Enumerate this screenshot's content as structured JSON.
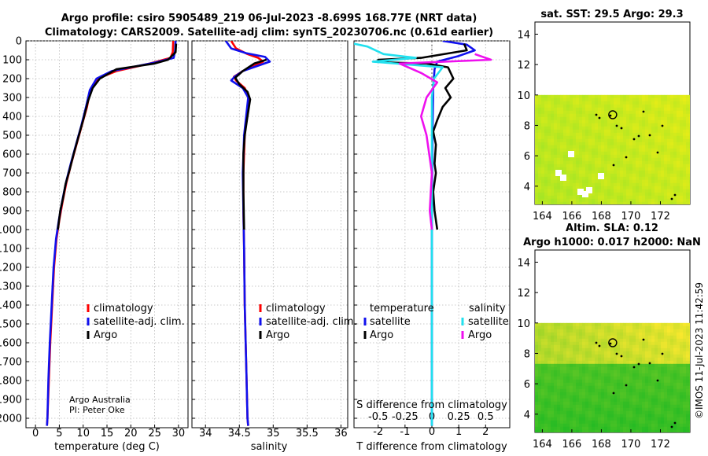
{
  "header": {
    "title_line1": "Argo profile: csiro 5905489_219 06-Jul-2023 -8.699S 168.77E (NRT data)",
    "title_line2": "Climatology: CARS2009. Satellite-adj clim: synTS_20230706.nc (0.61d earlier)"
  },
  "credit": {
    "line1": "Argo Australia",
    "line2": "PI: Peter Oke"
  },
  "stamp": "©IMOS 11-Jul-2023 11:42:59",
  "colors": {
    "climatology": "#ff0000",
    "satellite": "#1010ee",
    "argo": "#000000",
    "sat_salinity": "#22e0ee",
    "argo_salinity": "#ee10ee"
  },
  "chart_data": [
    {
      "type": "line",
      "id": "temperature",
      "xlabel": "temperature (deg C)",
      "ylabel": "",
      "xlim": [
        -2,
        32
      ],
      "ylim": [
        2050,
        0
      ],
      "xticks": [
        0,
        5,
        10,
        15,
        20,
        25,
        30
      ],
      "yticks": [
        0,
        100,
        200,
        300,
        400,
        500,
        600,
        700,
        800,
        900,
        1000,
        1100,
        1200,
        1300,
        1400,
        1500,
        1600,
        1700,
        1800,
        1900,
        2000
      ],
      "legend": [
        "climatology",
        "satellite-adj. clim.",
        "Argo"
      ],
      "series": [
        {
          "name": "climatology",
          "points": [
            [
              28.9,
              0
            ],
            [
              28.8,
              60
            ],
            [
              28.3,
              90
            ],
            [
              24,
              120
            ],
            [
              17,
              160
            ],
            [
              13,
              200
            ],
            [
              11.5,
              260
            ],
            [
              10.8,
              350
            ],
            [
              9.7,
              450
            ],
            [
              8.6,
              550
            ],
            [
              7.5,
              650
            ],
            [
              6.5,
              750
            ],
            [
              5.7,
              850
            ],
            [
              5,
              950
            ],
            [
              4.4,
              1050
            ],
            [
              3.9,
              1200
            ],
            [
              3.5,
              1400
            ],
            [
              3.1,
              1600
            ],
            [
              2.8,
              1800
            ],
            [
              2.5,
              2000
            ],
            [
              2.4,
              2040
            ]
          ]
        },
        {
          "name": "satellite-adj. clim.",
          "points": [
            [
              29.4,
              0
            ],
            [
              29.3,
              50
            ],
            [
              29,
              90
            ],
            [
              25,
              115
            ],
            [
              16,
              160
            ],
            [
              12.8,
              200
            ],
            [
              11.4,
              260
            ],
            [
              10.6,
              350
            ],
            [
              9.6,
              450
            ],
            [
              8.5,
              550
            ],
            [
              7.4,
              650
            ],
            [
              6.4,
              750
            ],
            [
              5.6,
              850
            ],
            [
              4.9,
              950
            ],
            [
              4.3,
              1050
            ],
            [
              3.8,
              1200
            ],
            [
              3.4,
              1400
            ],
            [
              3.0,
              1600
            ],
            [
              2.7,
              1800
            ],
            [
              2.5,
              2000
            ],
            [
              2.4,
              2040
            ]
          ]
        },
        {
          "name": "Argo",
          "points": [
            [
              29.5,
              15
            ],
            [
              29.4,
              60
            ],
            [
              27.8,
              100
            ],
            [
              25,
              120
            ],
            [
              17,
              150
            ],
            [
              13.5,
              200
            ],
            [
              12,
              250
            ],
            [
              11,
              320
            ],
            [
              10,
              420
            ],
            [
              9,
              510
            ],
            [
              8,
              600
            ],
            [
              7.2,
              680
            ],
            [
              6.3,
              760
            ],
            [
              5.8,
              830
            ],
            [
              5.2,
              900
            ],
            [
              4.8,
              980
            ],
            [
              4.7,
              1000
            ]
          ]
        }
      ]
    },
    {
      "type": "line",
      "id": "salinity",
      "xlabel": "salinity",
      "ylabel": "",
      "xlim": [
        33.8,
        36.1
      ],
      "ylim": [
        2050,
        0
      ],
      "xticks": [
        34,
        34.5,
        35,
        35.5,
        36
      ],
      "legend": [
        "climatology",
        "satellite-adj. clim.",
        "Argo"
      ],
      "series": [
        {
          "name": "climatology",
          "points": [
            [
              34.38,
              0
            ],
            [
              34.45,
              40
            ],
            [
              34.62,
              70
            ],
            [
              34.78,
              90
            ],
            [
              34.85,
              110
            ],
            [
              34.55,
              160
            ],
            [
              34.42,
              190
            ],
            [
              34.45,
              210
            ],
            [
              34.58,
              250
            ],
            [
              34.64,
              300
            ],
            [
              34.61,
              400
            ],
            [
              34.58,
              500
            ],
            [
              34.56,
              700
            ],
            [
              34.56,
              900
            ],
            [
              34.57,
              1100
            ],
            [
              34.58,
              1400
            ],
            [
              34.6,
              1700
            ],
            [
              34.62,
              2000
            ],
            [
              34.63,
              2040
            ]
          ]
        },
        {
          "name": "satellite-adj. clim.",
          "points": [
            [
              34.3,
              0
            ],
            [
              34.38,
              40
            ],
            [
              34.6,
              65
            ],
            [
              34.88,
              85
            ],
            [
              34.95,
              110
            ],
            [
              34.55,
              160
            ],
            [
              34.43,
              190
            ],
            [
              34.38,
              210
            ],
            [
              34.55,
              250
            ],
            [
              34.63,
              300
            ],
            [
              34.6,
              400
            ],
            [
              34.57,
              500
            ],
            [
              34.55,
              700
            ],
            [
              34.56,
              900
            ],
            [
              34.57,
              1100
            ],
            [
              34.58,
              1400
            ],
            [
              34.6,
              1700
            ],
            [
              34.62,
              2000
            ],
            [
              34.63,
              2040
            ]
          ]
        },
        {
          "name": "Argo",
          "points": [
            [
              34.9,
              100
            ],
            [
              34.72,
              120
            ],
            [
              34.55,
              160
            ],
            [
              34.44,
              195
            ],
            [
              34.5,
              230
            ],
            [
              34.62,
              270
            ],
            [
              34.66,
              310
            ],
            [
              34.62,
              400
            ],
            [
              34.58,
              500
            ],
            [
              34.56,
              600
            ],
            [
              34.56,
              800
            ],
            [
              34.57,
              1000
            ]
          ]
        }
      ]
    },
    {
      "type": "line",
      "id": "differences",
      "xlabel": "T difference from climatology",
      "xlabel_top": "S difference from climatology",
      "xlim": [
        -2.9,
        2.9
      ],
      "ylim": [
        2050,
        0
      ],
      "xticks": [
        -2,
        -1,
        0,
        1,
        2
      ],
      "xticks_s": [
        -0.5,
        -0.25,
        0,
        0.25,
        0.5
      ],
      "legend_temperature_title": "temperature",
      "legend_salinity_title": "salinity",
      "legend": [
        "satellite",
        "Argo",
        "satellite",
        "Argo"
      ],
      "series": [
        {
          "name": "satellite (temperature)",
          "points": [
            [
              0.4,
              0
            ],
            [
              1.3,
              20
            ],
            [
              1.6,
              50
            ],
            [
              1.0,
              80
            ],
            [
              0.2,
              110
            ],
            [
              0.1,
              150
            ],
            [
              0.05,
              250
            ],
            [
              0.02,
              500
            ],
            [
              0,
              1000
            ],
            [
              0,
              2040
            ]
          ]
        },
        {
          "name": "Argo (temperature)",
          "points": [
            [
              1.2,
              15
            ],
            [
              1.3,
              50
            ],
            [
              -0.4,
              90
            ],
            [
              -2.0,
              100
            ],
            [
              -1.6,
              115
            ],
            [
              -0.2,
              120
            ],
            [
              0.6,
              140
            ],
            [
              0.8,
              200
            ],
            [
              0.5,
              250
            ],
            [
              0.7,
              300
            ],
            [
              0.4,
              350
            ],
            [
              0.2,
              420
            ],
            [
              0.05,
              480
            ],
            [
              0.15,
              550
            ],
            [
              0.1,
              650
            ],
            [
              0.15,
              700
            ],
            [
              0.05,
              800
            ],
            [
              0.1,
              900
            ],
            [
              0.2,
              1000
            ]
          ]
        },
        {
          "name": "satellite (salinity)",
          "points": [
            [
              -0.85,
              0
            ],
            [
              -0.6,
              30
            ],
            [
              -0.45,
              70
            ],
            [
              -0.15,
              90
            ],
            [
              -0.55,
              110
            ],
            [
              0.1,
              140
            ],
            [
              0.02,
              200
            ],
            [
              0,
              300
            ],
            [
              0,
              1000
            ],
            [
              0,
              2040
            ]
          ]
        },
        {
          "name": "Argo (salinity)",
          "points": [
            [
              0.4,
              70
            ],
            [
              0.55,
              100
            ],
            [
              -0.3,
              120
            ],
            [
              -0.1,
              170
            ],
            [
              0.05,
              220
            ],
            [
              -0.05,
              300
            ],
            [
              -0.1,
              400
            ],
            [
              -0.05,
              500
            ],
            [
              0,
              700
            ],
            [
              -0.02,
              900
            ],
            [
              0,
              1000
            ]
          ]
        }
      ]
    },
    {
      "type": "heatmap",
      "id": "sat-sst",
      "title": "sat. SST: 29.5 Argo: 29.3",
      "xlim": [
        163.5,
        174
      ],
      "ylim": [
        2.8,
        14.8
      ],
      "xticks": [
        164,
        166,
        168,
        170,
        172
      ],
      "yticks": [
        4,
        6,
        8,
        10,
        12,
        14
      ],
      "data_top_lat": 10,
      "marker": [
        168.77,
        8.7
      ]
    },
    {
      "type": "heatmap",
      "id": "altimetry",
      "title": "Altim. SLA: 0.12",
      "subtitle": "Argo h1000: 0.017 h2000: NaN",
      "xlim": [
        163.5,
        174
      ],
      "ylim": [
        2.8,
        14.8
      ],
      "xticks": [
        164,
        166,
        168,
        170,
        172
      ],
      "yticks": [
        4,
        6,
        8,
        10,
        12,
        14
      ],
      "data_top_lat": 10,
      "marker": [
        168.77,
        8.7
      ]
    }
  ]
}
